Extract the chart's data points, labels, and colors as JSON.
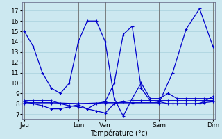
{
  "background_color": "#cce8f0",
  "grid_color": "#a8d0dc",
  "line_color": "#0000cc",
  "xlabel": "Température (°c)",
  "xlabel_fontsize": 7,
  "ylabel_fontsize": 6.5,
  "tick_fontsize": 6.5,
  "ylim": [
    6.5,
    17.8
  ],
  "xlim": [
    -2,
    170
  ],
  "yticks": [
    7,
    8,
    9,
    10,
    11,
    12,
    13,
    14,
    15,
    16,
    17
  ],
  "x_tick_labels": [
    "Jeu",
    "Lun",
    "Ven",
    "Sam",
    "Dim"
  ],
  "x_tick_positions": [
    0,
    48,
    72,
    120,
    168
  ],
  "x_vlines": [
    0,
    48,
    72,
    120,
    168
  ],
  "series": [
    {
      "x": [
        0,
        8,
        16,
        24,
        32,
        40,
        48,
        56,
        64,
        72,
        80,
        88,
        96,
        104,
        112,
        120,
        128,
        136,
        144,
        152,
        160,
        168
      ],
      "y": [
        15,
        13.5,
        11,
        9.5,
        9,
        10,
        14,
        16,
        16,
        14,
        8.5,
        6.8,
        8.5,
        10,
        8.5,
        8.5,
        9,
        8.5,
        8.5,
        8.5,
        8.5,
        8.5
      ]
    },
    {
      "x": [
        0,
        8,
        16,
        24,
        32,
        40,
        48,
        56,
        64,
        72,
        80,
        88,
        96,
        104,
        112,
        120,
        128,
        136,
        144,
        152,
        160,
        168
      ],
      "y": [
        8.3,
        8.3,
        8.3,
        8.3,
        8.0,
        7.8,
        7.7,
        7.5,
        8.0,
        8.2,
        10.0,
        14.7,
        15.5,
        9.5,
        8.3,
        8.3,
        8.3,
        8.3,
        8.3,
        8.3,
        8.3,
        8.3
      ]
    },
    {
      "x": [
        0,
        8,
        16,
        24,
        32,
        40,
        48,
        56,
        64,
        72,
        80,
        88,
        96,
        104,
        112,
        120,
        128,
        136,
        144,
        152,
        160,
        168
      ],
      "y": [
        8.2,
        8.0,
        7.8,
        7.5,
        7.5,
        7.7,
        7.9,
        7.5,
        7.3,
        7.1,
        8.0,
        8.2,
        8.3,
        8.3,
        8.3,
        8.2,
        8.0,
        8.0,
        8.0,
        8.0,
        8.1,
        8.2
      ]
    },
    {
      "x": [
        0,
        24,
        48,
        72,
        96,
        120,
        132,
        144,
        156,
        168
      ],
      "y": [
        8.1,
        8.1,
        8.0,
        8.1,
        8.1,
        8.1,
        11.0,
        15.2,
        17.2,
        13.5
      ]
    },
    {
      "x": [
        0,
        24,
        48,
        72,
        96,
        120,
        132,
        144,
        156,
        168
      ],
      "y": [
        8.0,
        8.0,
        8.0,
        8.0,
        8.0,
        8.0,
        8.0,
        8.0,
        8.0,
        8.7
      ]
    }
  ]
}
